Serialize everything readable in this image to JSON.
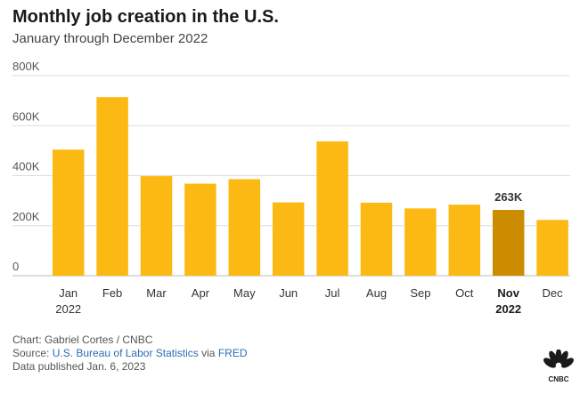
{
  "header": {
    "title": "Monthly job creation in the U.S.",
    "subtitle": "January through December 2022"
  },
  "chart_data": {
    "type": "bar",
    "categories": [
      "Jan",
      "Feb",
      "Mar",
      "Apr",
      "May",
      "Jun",
      "Jul",
      "Aug",
      "Sep",
      "Oct",
      "Nov",
      "Dec"
    ],
    "category_sublabels": [
      "2022",
      "",
      "",
      "",
      "",
      "",
      "",
      "",
      "",
      "",
      "2022",
      ""
    ],
    "values": [
      504000,
      714000,
      398000,
      368000,
      386000,
      293000,
      537000,
      292000,
      269000,
      284000,
      263000,
      223000
    ],
    "ylim": [
      0,
      800000
    ],
    "yticks": [
      0,
      200000,
      400000,
      600000,
      800000
    ],
    "ytick_labels": [
      "0",
      "200K",
      "400K",
      "600K",
      "800K"
    ],
    "highlight_index": 10,
    "annotation": {
      "index": 10,
      "label": "263K"
    },
    "bar_color": "#FDB913",
    "highlight_color": "#CC8C00",
    "grid": true
  },
  "footer": {
    "credit": "Chart: Gabriel Cortes / CNBC",
    "source_prefix": "Source:",
    "source_link": "U.S. Bureau of Labor Statistics",
    "source_via": "via",
    "source_link2": "FRED",
    "published": "Data published Jan. 6, 2023"
  },
  "logo": {
    "text": "CNBC",
    "icon": "cnbc-peacock-icon"
  }
}
